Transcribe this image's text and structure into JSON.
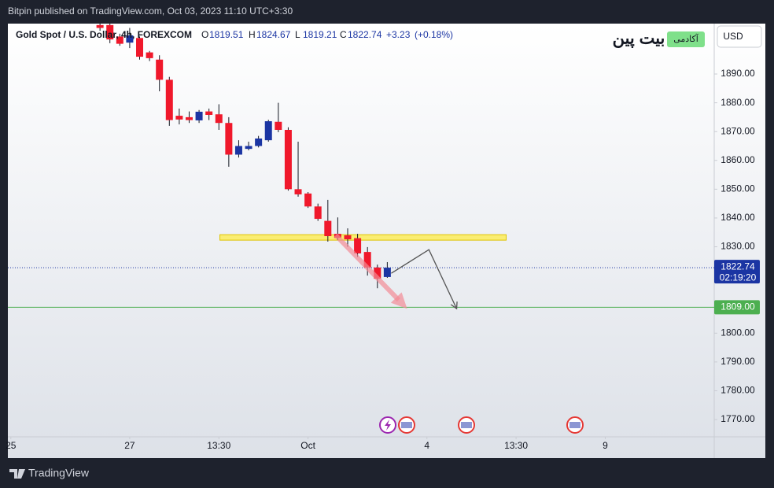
{
  "published": "Bitpin published on TradingView.com, Oct 03, 2023 11:10 UTC+3:30",
  "footer": "TradingView",
  "header": {
    "symbol": "Gold Spot / U.S. Dollar, 4h, FOREXCOM",
    "ohlc_letters": [
      "O",
      "H",
      "L",
      "C"
    ],
    "ohlc": [
      1819.51,
      1824.67,
      1819.21,
      1822.74
    ],
    "change": "+3.23",
    "change_pct": "(+0.18%)"
  },
  "logo": {
    "name": "بیت پین",
    "badge": "آکادمی"
  },
  "currency": "USD",
  "chart_data": {
    "type": "candlestick",
    "x": [
      0,
      1,
      2,
      3,
      4,
      5,
      6,
      7,
      8,
      9,
      10,
      11,
      12,
      13,
      14,
      15,
      16,
      17,
      18,
      19,
      20,
      21,
      22,
      23,
      24,
      25,
      26,
      27,
      28,
      29
    ],
    "open": [
      1907,
      1907,
      1903,
      1900.9,
      1902.5,
      1897.5,
      1895,
      1888,
      1875.5,
      1875,
      1873.9,
      1877,
      1876,
      1873,
      1862,
      1864,
      1865,
      1867,
      1873.4,
      1870.6,
      1850,
      1848.5,
      1844,
      1839,
      1834.5,
      1834,
      1833,
      1828.2,
      1822.8,
      1819.51
    ],
    "high": [
      1908,
      1908,
      1904,
      1906,
      1903,
      1898,
      1896.5,
      1889,
      1878,
      1877,
      1877.5,
      1878,
      1879.5,
      1875,
      1867,
      1866.5,
      1868.5,
      1874.1,
      1880,
      1871.5,
      1866.5,
      1849,
      1845,
      1846.3,
      1840.2,
      1836.4,
      1834.5,
      1829.9,
      1823.8,
      1824.67
    ],
    "low": [
      1905,
      1900.7,
      1899.8,
      1899,
      1895,
      1894.5,
      1884,
      1872,
      1872.5,
      1873,
      1873,
      1874,
      1870.6,
      1857.8,
      1861,
      1863.5,
      1864.5,
      1866.5,
      1869.8,
      1849.5,
      1847.4,
      1843.5,
      1839,
      1831.8,
      1832.3,
      1830,
      1826.5,
      1820,
      1815.6,
      1819.21
    ],
    "close": [
      1906,
      1902,
      1900.5,
      1903.4,
      1896,
      1895.5,
      1888,
      1874,
      1874.2,
      1874,
      1876.9,
      1875.8,
      1873,
      1862,
      1865,
      1865,
      1867.6,
      1873.6,
      1870.6,
      1850,
      1848.2,
      1844,
      1839.7,
      1833.7,
      1833.1,
      1832.6,
      1827.7,
      1822.8,
      1818.9,
      1822.74
    ],
    "up_color": "#1b35a3",
    "down_color": "#f0182b",
    "xlim": [
      -9.3,
      62
    ],
    "xticks": [
      {
        "value": -9,
        "label": "25"
      },
      {
        "value": 3,
        "label": "27"
      },
      {
        "value": 12,
        "label": "13:30"
      },
      {
        "value": 21,
        "label": "Oct"
      },
      {
        "value": 33,
        "label": "4"
      },
      {
        "value": 42,
        "label": "13:30"
      },
      {
        "value": 51,
        "label": "9"
      }
    ],
    "ylim": [
      1764,
      1907.5
    ],
    "yticks": [
      {
        "value": 1770,
        "label": "1770.00"
      },
      {
        "value": 1780,
        "label": "1780.00"
      },
      {
        "value": 1790,
        "label": "1790.00"
      },
      {
        "value": 1800,
        "label": "1800.00"
      },
      {
        "value": 1810,
        "label": "1810.00"
      },
      {
        "value": 1820,
        "label": "1820.00"
      },
      {
        "value": 1830,
        "label": "1830.00"
      },
      {
        "value": 1840,
        "label": "1840.00"
      },
      {
        "value": 1850,
        "label": "1850.00"
      },
      {
        "value": 1860,
        "label": "1860.00"
      },
      {
        "value": 1870,
        "label": "1870.00"
      },
      {
        "value": 1880,
        "label": "1880.00"
      },
      {
        "value": 1890,
        "label": "1890.00"
      }
    ],
    "last_price": 1822.74,
    "countdown": "02:19:20",
    "level": {
      "value": 1809,
      "label": "1809.00",
      "color": "#4caf50"
    },
    "zone": {
      "x": [
        12.1,
        41
      ],
      "y": [
        1832.3,
        1834.2
      ],
      "color": "#ffeb3b"
    },
    "arrow": {
      "x": [
        23.8,
        31
      ],
      "y": [
        1834,
        1808.5
      ],
      "color": "#f28b95"
    },
    "path": {
      "x": [
        29.4,
        33.2,
        36
      ],
      "y": [
        1820.8,
        1829,
        1808.5
      ],
      "color": "#555555"
    }
  }
}
